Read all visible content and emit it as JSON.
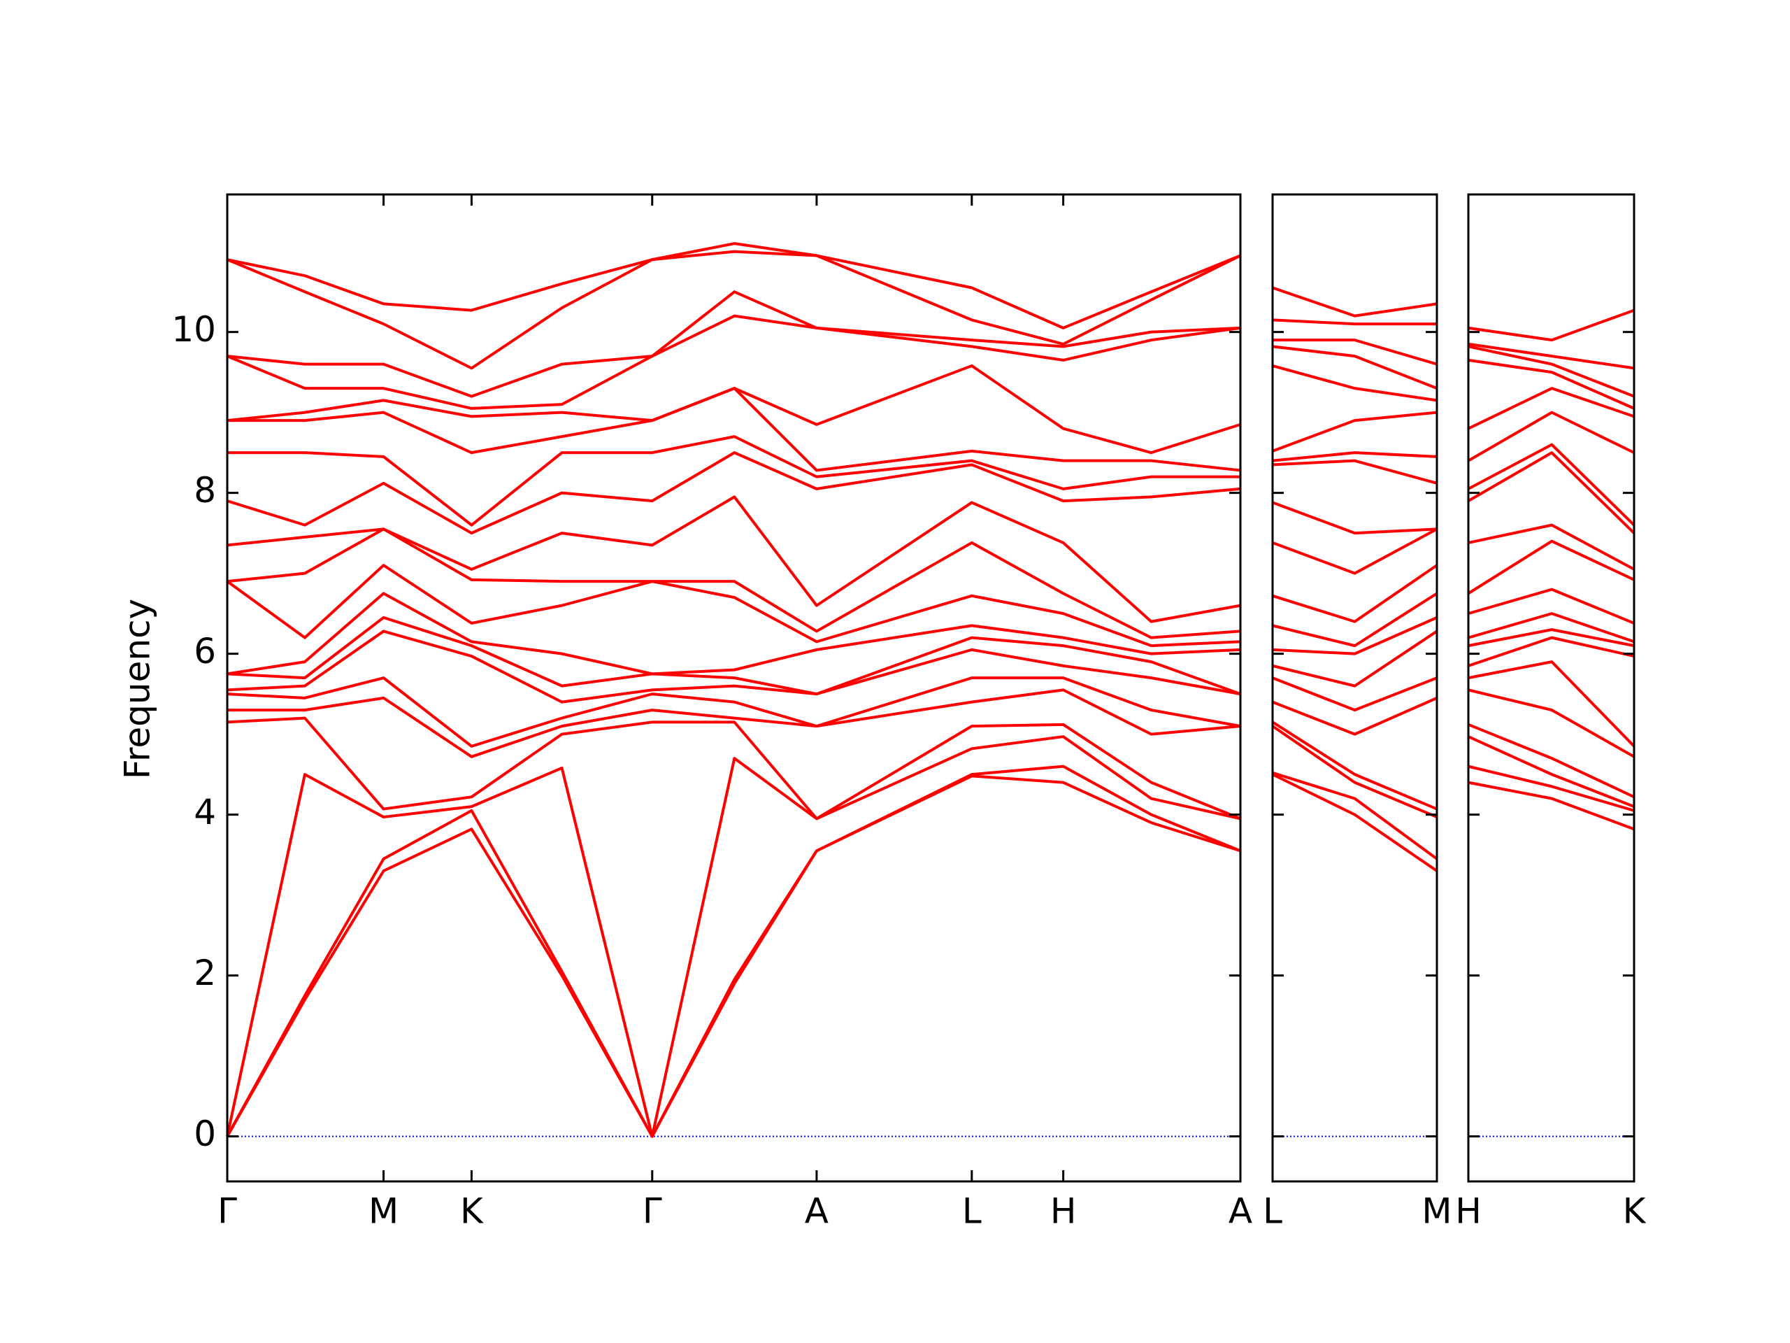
{
  "chart_data": [
    {
      "type": "line",
      "ylabel": "Frequency",
      "color": "#ff0000",
      "xlim": [
        0,
        875
      ],
      "ylim": [
        -0.56,
        11.71
      ],
      "xticks": [
        {
          "value": 0,
          "label": "Γ"
        },
        {
          "value": 135,
          "label": "M"
        },
        {
          "value": 211,
          "label": "K"
        },
        {
          "value": 367,
          "label": "Γ"
        },
        {
          "value": 509,
          "label": "A"
        },
        {
          "value": 643,
          "label": "L"
        },
        {
          "value": 722,
          "label": "H"
        },
        {
          "value": 875,
          "label": "A"
        }
      ],
      "yticks": [
        0,
        2,
        4,
        6,
        8,
        10
      ],
      "zero_line": {
        "value": 0,
        "color": "#0000ff"
      },
      "x": [
        0,
        67,
        135,
        211,
        289,
        367,
        438,
        509,
        643,
        722,
        798,
        875
      ],
      "series": [
        {
          "values": [
            0,
            1.7,
            3.3,
            3.82,
            2.0,
            0,
            1.9,
            3.55,
            4.48,
            4.4,
            3.9,
            3.55
          ]
        },
        {
          "values": [
            0,
            1.75,
            3.45,
            4.05,
            2.05,
            0,
            1.95,
            3.55,
            4.5,
            4.6,
            4.0,
            3.55
          ]
        },
        {
          "values": [
            0,
            4.5,
            3.97,
            4.1,
            4.58,
            0,
            4.7,
            3.95,
            4.82,
            4.97,
            4.2,
            3.95
          ]
        },
        {
          "values": [
            5.15,
            5.2,
            4.07,
            4.22,
            5.0,
            5.15,
            5.15,
            3.95,
            5.1,
            5.12,
            4.4,
            3.95
          ]
        },
        {
          "values": [
            5.3,
            5.3,
            5.45,
            4.72,
            5.1,
            5.3,
            5.2,
            5.1,
            5.4,
            5.55,
            5.0,
            5.1
          ]
        },
        {
          "values": [
            5.5,
            5.45,
            5.7,
            4.85,
            5.2,
            5.5,
            5.4,
            5.1,
            5.7,
            5.7,
            5.3,
            5.1
          ]
        },
        {
          "values": [
            5.55,
            5.6,
            6.28,
            5.97,
            5.4,
            5.55,
            5.6,
            5.5,
            6.05,
            5.85,
            5.7,
            5.5
          ]
        },
        {
          "values": [
            5.75,
            5.7,
            6.45,
            6.1,
            5.6,
            5.75,
            5.7,
            5.5,
            6.2,
            6.1,
            5.9,
            5.5
          ]
        },
        {
          "values": [
            5.75,
            5.9,
            6.75,
            6.15,
            6.0,
            5.75,
            5.8,
            6.05,
            6.35,
            6.2,
            6.0,
            6.05
          ]
        },
        {
          "values": [
            6.9,
            6.2,
            7.1,
            6.38,
            6.6,
            6.9,
            6.7,
            6.15,
            6.72,
            6.5,
            6.1,
            6.15
          ]
        },
        {
          "values": [
            6.9,
            7.0,
            7.55,
            6.92,
            6.9,
            6.9,
            6.9,
            6.28,
            7.38,
            6.75,
            6.2,
            6.28
          ]
        },
        {
          "values": [
            7.35,
            7.45,
            7.55,
            7.05,
            7.5,
            7.35,
            7.95,
            6.6,
            7.88,
            7.38,
            6.4,
            6.6
          ]
        },
        {
          "values": [
            7.9,
            7.6,
            8.12,
            7.5,
            8.0,
            7.9,
            8.5,
            8.05,
            8.35,
            7.9,
            7.95,
            8.05
          ]
        },
        {
          "values": [
            8.5,
            8.5,
            8.45,
            7.6,
            8.5,
            8.5,
            8.7,
            8.2,
            8.4,
            8.05,
            8.2,
            8.2
          ]
        },
        {
          "values": [
            8.9,
            8.9,
            9.0,
            8.5,
            8.7,
            8.9,
            9.3,
            8.28,
            8.52,
            8.4,
            8.4,
            8.28
          ]
        },
        {
          "values": [
            8.9,
            9.0,
            9.15,
            8.95,
            9.0,
            8.9,
            9.3,
            8.85,
            9.58,
            8.8,
            8.5,
            8.85
          ]
        },
        {
          "values": [
            9.7,
            9.3,
            9.3,
            9.05,
            9.1,
            9.7,
            10.2,
            10.05,
            9.82,
            9.65,
            9.9,
            10.05
          ]
        },
        {
          "values": [
            9.7,
            9.6,
            9.6,
            9.2,
            9.6,
            9.7,
            10.5,
            10.05,
            9.9,
            9.82,
            10.0,
            10.05
          ]
        },
        {
          "values": [
            10.9,
            10.5,
            10.1,
            9.55,
            10.3,
            10.9,
            11.0,
            10.95,
            10.15,
            9.85,
            10.4,
            10.95
          ]
        },
        {
          "values": [
            10.9,
            10.7,
            10.35,
            10.27,
            10.6,
            10.9,
            11.1,
            10.95,
            10.55,
            10.05,
            10.5,
            10.95
          ]
        }
      ]
    },
    {
      "type": "line",
      "color": "#ff0000",
      "xlim": [
        0,
        142
      ],
      "ylim": [
        -0.56,
        11.71
      ],
      "xticks": [
        {
          "value": 0,
          "label": "L"
        },
        {
          "value": 142,
          "label": "M"
        }
      ],
      "yticks": [
        0,
        2,
        4,
        6,
        8,
        10
      ],
      "zero_line": {
        "value": 0,
        "color": "#0000ff"
      },
      "x": [
        0,
        71,
        142
      ],
      "series": [
        {
          "values": [
            4.5,
            4.0,
            3.3
          ]
        },
        {
          "values": [
            4.52,
            4.2,
            3.45
          ]
        },
        {
          "values": [
            5.1,
            4.4,
            3.97
          ]
        },
        {
          "values": [
            5.15,
            4.5,
            4.07
          ]
        },
        {
          "values": [
            5.4,
            5.0,
            5.45
          ]
        },
        {
          "values": [
            5.7,
            5.3,
            5.7
          ]
        },
        {
          "values": [
            5.85,
            5.6,
            6.28
          ]
        },
        {
          "values": [
            6.05,
            6.0,
            6.45
          ]
        },
        {
          "values": [
            6.35,
            6.1,
            6.75
          ]
        },
        {
          "values": [
            6.72,
            6.4,
            7.1
          ]
        },
        {
          "values": [
            7.38,
            7.0,
            7.55
          ]
        },
        {
          "values": [
            7.88,
            7.5,
            7.55
          ]
        },
        {
          "values": [
            8.35,
            8.4,
            8.12
          ]
        },
        {
          "values": [
            8.4,
            8.5,
            8.45
          ]
        },
        {
          "values": [
            8.52,
            8.9,
            9.0
          ]
        },
        {
          "values": [
            9.58,
            9.3,
            9.15
          ]
        },
        {
          "values": [
            9.82,
            9.7,
            9.3
          ]
        },
        {
          "values": [
            9.9,
            9.9,
            9.6
          ]
        },
        {
          "values": [
            10.15,
            10.1,
            10.1
          ]
        },
        {
          "values": [
            10.55,
            10.2,
            10.35
          ]
        }
      ]
    },
    {
      "type": "line",
      "color": "#ff0000",
      "xlim": [
        0,
        143
      ],
      "ylim": [
        -0.56,
        11.71
      ],
      "xticks": [
        {
          "value": 0,
          "label": "H"
        },
        {
          "value": 143,
          "label": "K"
        }
      ],
      "yticks": [
        0,
        2,
        4,
        6,
        8,
        10
      ],
      "zero_line": {
        "value": 0,
        "color": "#0000ff"
      },
      "x": [
        0,
        72,
        143
      ],
      "series": [
        {
          "values": [
            4.4,
            4.2,
            3.82
          ]
        },
        {
          "values": [
            4.6,
            4.35,
            4.05
          ]
        },
        {
          "values": [
            4.97,
            4.5,
            4.1
          ]
        },
        {
          "values": [
            5.12,
            4.7,
            4.22
          ]
        },
        {
          "values": [
            5.55,
            5.3,
            4.72
          ]
        },
        {
          "values": [
            5.7,
            5.9,
            4.85
          ]
        },
        {
          "values": [
            5.85,
            6.2,
            5.97
          ]
        },
        {
          "values": [
            6.1,
            6.3,
            6.1
          ]
        },
        {
          "values": [
            6.2,
            6.5,
            6.15
          ]
        },
        {
          "values": [
            6.5,
            6.8,
            6.38
          ]
        },
        {
          "values": [
            6.75,
            7.4,
            6.92
          ]
        },
        {
          "values": [
            7.38,
            7.6,
            7.05
          ]
        },
        {
          "values": [
            7.9,
            8.5,
            7.5
          ]
        },
        {
          "values": [
            8.05,
            8.6,
            7.6
          ]
        },
        {
          "values": [
            8.4,
            9.0,
            8.5
          ]
        },
        {
          "values": [
            8.8,
            9.3,
            8.95
          ]
        },
        {
          "values": [
            9.65,
            9.5,
            9.05
          ]
        },
        {
          "values": [
            9.82,
            9.6,
            9.2
          ]
        },
        {
          "values": [
            9.85,
            9.7,
            9.55
          ]
        },
        {
          "values": [
            10.05,
            9.9,
            10.27
          ]
        }
      ]
    }
  ]
}
